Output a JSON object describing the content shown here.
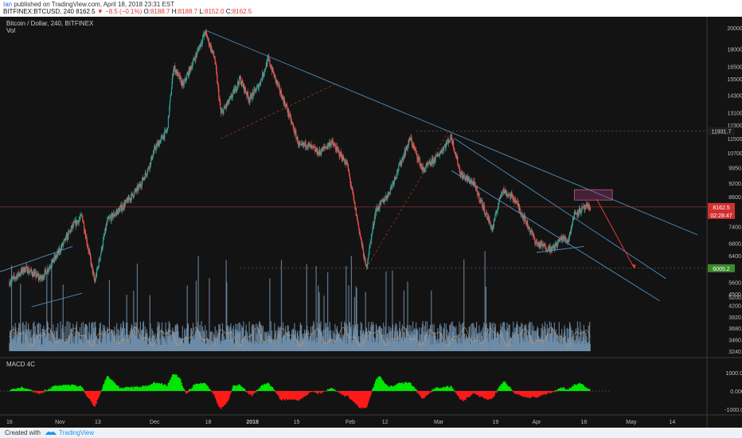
{
  "header": {
    "user": "Ian",
    "published_text": " published on TradingView.com, April 18, 2018 23:31 EST",
    "symbol_tf": "BITFINEX:BTCUSD, 240",
    "last": "8162.5",
    "change": "−8.5 (−0.1%)",
    "o_label": "O:",
    "o": "8188.7",
    "h_label": "H:",
    "h": "8188.7",
    "l_label": "L:",
    "l": "8152.0",
    "c_label": "C:",
    "c": "8162.5"
  },
  "pane_labels": {
    "main": "Bitcoin / Dollar, 240, BITFINEX",
    "vol": "Vol",
    "macd": "MACD 4C"
  },
  "footer": {
    "created": "Created with",
    "brand": "TradingView"
  },
  "colors": {
    "up": "#26a69a",
    "down": "#ef5350",
    "bg": "#131313",
    "trendline": "#4f8fbf",
    "target_arrow": "#e53935",
    "vol_bar": "#7a9bb8",
    "macd_pos": "#00e600",
    "macd_neg": "#ff1a1a"
  },
  "chart_data": [
    {
      "type": "candlestick",
      "title": "Bitcoin / Dollar, 240, BITFINEX",
      "y_scale": "log",
      "ylim": [
        4800,
        21000
      ],
      "y_ticks": [
        "20000.0",
        "18000.0",
        "16500.0",
        "15500.0",
        "14300.0",
        "13100.0",
        "12300.0",
        "11500.0",
        "10700.0",
        "9950.0",
        "9200.0",
        "8600.0",
        "7400.0",
        "6800.0",
        "6400.0",
        "5600.0",
        "5200.0"
      ],
      "x_ticks": [
        "16",
        "Nov",
        "13",
        "Dec",
        "18",
        "2018",
        "15",
        "Feb",
        "12",
        "Mar",
        "19",
        "Apr",
        "16",
        "May",
        "14"
      ],
      "last_price_label": "8162.5",
      "countdown_label": "02:28:47",
      "price_labels": [
        "11931.7",
        "6005.2"
      ],
      "path_points": [
        [
          "2017-10-16",
          5600
        ],
        [
          "2017-10-21",
          6000
        ],
        [
          "2017-10-26",
          5700
        ],
        [
          "2017-10-31",
          6400
        ],
        [
          "2017-11-05",
          7400
        ],
        [
          "2017-11-08",
          7800
        ],
        [
          "2017-11-12",
          5600
        ],
        [
          "2017-11-16",
          7600
        ],
        [
          "2017-11-21",
          8200
        ],
        [
          "2017-11-26",
          9000
        ],
        [
          "2017-11-29",
          9900
        ],
        [
          "2017-12-01",
          10900
        ],
        [
          "2017-12-05",
          12000
        ],
        [
          "2017-12-07",
          16500
        ],
        [
          "2017-12-10",
          15000
        ],
        [
          "2017-12-14",
          17400
        ],
        [
          "2017-12-17",
          19600
        ],
        [
          "2017-12-20",
          17200
        ],
        [
          "2017-12-22",
          13000
        ],
        [
          "2017-12-25",
          14000
        ],
        [
          "2017-12-28",
          15500
        ],
        [
          "2017-12-31",
          14000
        ],
        [
          "2018-01-03",
          15000
        ],
        [
          "2018-01-06",
          17100
        ],
        [
          "2018-01-09",
          15000
        ],
        [
          "2018-01-12",
          13300
        ],
        [
          "2018-01-16",
          11000
        ],
        [
          "2018-01-18",
          11200
        ],
        [
          "2018-01-22",
          10700
        ],
        [
          "2018-01-26",
          11300
        ],
        [
          "2018-01-31",
          10100
        ],
        [
          "2018-02-02",
          8500
        ],
        [
          "2018-02-06",
          6000
        ],
        [
          "2018-02-09",
          8000
        ],
        [
          "2018-02-13",
          8700
        ],
        [
          "2018-02-17",
          10200
        ],
        [
          "2018-02-20",
          11500
        ],
        [
          "2018-02-24",
          9800
        ],
        [
          "2018-02-28",
          10400
        ],
        [
          "2018-03-05",
          11600
        ],
        [
          "2018-03-08",
          9600
        ],
        [
          "2018-03-12",
          9200
        ],
        [
          "2018-03-15",
          8200
        ],
        [
          "2018-03-18",
          7300
        ],
        [
          "2018-03-21",
          8900
        ],
        [
          "2018-03-25",
          8500
        ],
        [
          "2018-03-29",
          7500
        ],
        [
          "2018-04-01",
          6800
        ],
        [
          "2018-04-06",
          6600
        ],
        [
          "2018-04-09",
          7000
        ],
        [
          "2018-04-11",
          6900
        ],
        [
          "2018-04-13",
          7900
        ],
        [
          "2018-04-16",
          8100
        ],
        [
          "2018-04-18",
          8162.5
        ]
      ],
      "projection": {
        "from": [
          "2018-04-20",
          8500
        ],
        "to": [
          "2018-05-02",
          6000
        ]
      }
    },
    {
      "type": "bar",
      "title": "Vol",
      "y_ticks": [
        "4500.0",
        "4200.0",
        "3920.0",
        "3680.0",
        "3460.0",
        "3240.0"
      ]
    },
    {
      "type": "bar",
      "title": "MACD 4C",
      "y_ticks": [
        "1000.0000",
        "0.0000",
        "-1000.0000"
      ],
      "ylim": [
        -1300,
        1300
      ]
    }
  ]
}
